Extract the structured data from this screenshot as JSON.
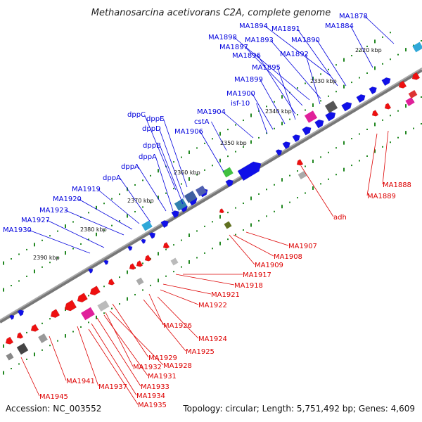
{
  "title": "Methanosarcina acetivorans C2A, complete genome",
  "footer": {
    "accession": "Accession: NC_003552",
    "summary": "Topology: circular; Length: 5,751,492 bp; Genes: 4,609"
  },
  "colors": {
    "plus_label": "#0000dd",
    "minus_label": "#dd0000",
    "plus_gene": "#1010e8",
    "minus_gene": "#ee1010",
    "rna_gene": "#e0209a",
    "pseudo_gene": "#888888",
    "special_gene": "#30a8d8",
    "misc_green": "#40c040",
    "tick": "#228822",
    "axis": "#555555"
  },
  "kbp_ticks": [
    "2320 kbp",
    "2330 kbp",
    "2340 kbp",
    "2350 kbp",
    "2360 kbp",
    "2370 kbp",
    "2380 kbp",
    "2390 kbp"
  ],
  "plus_labels": [
    "MA1878",
    "MA1884",
    "MA1894",
    "MA1891",
    "MA1898",
    "MA1893",
    "MA1890",
    "MA1897",
    "MA1896",
    "MA1892",
    "MA1895",
    "MA1899",
    "MA1900",
    "isf-10",
    "MA1904",
    "cstA",
    "dppC",
    "dppE",
    "dppD",
    "MA1906",
    "dppB",
    "dppA",
    "dppA",
    "dppA",
    "MA1919",
    "MA1920",
    "MA1923",
    "MA1927",
    "MA1930"
  ],
  "minus_labels": [
    "MA1888",
    "MA1889",
    "adh",
    "MA1907",
    "MA1908",
    "MA1909",
    "MA1917",
    "MA1918",
    "MA1921",
    "MA1922",
    "MA1926",
    "MA1924",
    "MA1925",
    "MA1929",
    "MA1928",
    "MA1932",
    "MA1931",
    "MA1933",
    "MA1934",
    "MA1935",
    "MA1937",
    "MA1941",
    "MA1945"
  ]
}
